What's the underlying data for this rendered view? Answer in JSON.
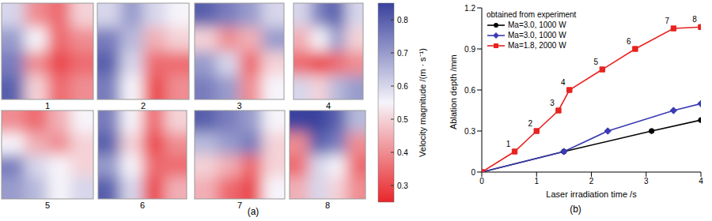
{
  "figure_a": {
    "panel_label": "(a)",
    "maps": [
      {
        "label": "1",
        "field": [
          [
            0.6,
            0.4,
            0.35,
            0.5
          ],
          [
            0.7,
            0.55,
            0.35,
            0.4
          ],
          [
            0.75,
            0.4,
            0.3,
            0.35
          ],
          [
            0.8,
            0.5,
            0.35,
            0.4
          ]
        ]
      },
      {
        "label": "2",
        "field": [
          [
            0.6,
            0.7,
            0.6,
            0.55
          ],
          [
            0.75,
            0.65,
            0.45,
            0.5
          ],
          [
            0.8,
            0.6,
            0.35,
            0.35
          ],
          [
            0.75,
            0.55,
            0.3,
            0.4
          ]
        ]
      },
      {
        "label": "3",
        "field": [
          [
            0.8,
            0.75,
            0.7,
            0.6
          ],
          [
            0.5,
            0.4,
            0.45,
            0.7
          ],
          [
            0.7,
            0.6,
            0.35,
            0.5
          ],
          [
            0.75,
            0.7,
            0.4,
            0.55
          ]
        ]
      },
      {
        "label": "4",
        "field": [
          [
            0.6,
            0.75,
            0.8,
            0.6
          ],
          [
            0.45,
            0.55,
            0.7,
            0.5
          ],
          [
            0.35,
            0.3,
            0.35,
            0.4
          ],
          [
            0.6,
            0.5,
            0.65,
            0.7
          ]
        ]
      },
      {
        "label": "5",
        "field": [
          [
            0.4,
            0.35,
            0.45,
            0.55
          ],
          [
            0.55,
            0.45,
            0.4,
            0.5
          ],
          [
            0.75,
            0.6,
            0.55,
            0.5
          ],
          [
            0.7,
            0.65,
            0.55,
            0.6
          ]
        ]
      },
      {
        "label": "6",
        "field": [
          [
            0.75,
            0.55,
            0.35,
            0.5
          ],
          [
            0.8,
            0.5,
            0.3,
            0.4
          ],
          [
            0.7,
            0.55,
            0.35,
            0.35
          ],
          [
            0.8,
            0.6,
            0.3,
            0.45
          ]
        ]
      },
      {
        "label": "7",
        "field": [
          [
            0.8,
            0.75,
            0.7,
            0.55
          ],
          [
            0.65,
            0.7,
            0.75,
            0.5
          ],
          [
            0.5,
            0.45,
            0.35,
            0.5
          ],
          [
            0.45,
            0.35,
            0.3,
            0.55
          ]
        ]
      },
      {
        "label": "8",
        "field": [
          [
            0.85,
            0.85,
            0.8,
            0.65
          ],
          [
            0.4,
            0.8,
            0.75,
            0.4
          ],
          [
            0.35,
            0.6,
            0.55,
            0.35
          ],
          [
            0.45,
            0.6,
            0.5,
            0.4
          ]
        ]
      }
    ],
    "colorbar": {
      "label": "Velocity magnitude /(m · s⁻¹)",
      "range": [
        0.25,
        0.85
      ],
      "ticks": [
        0.3,
        0.4,
        0.5,
        0.6,
        0.7,
        0.8
      ]
    }
  },
  "chart_data": {
    "panel_label": "(b)",
    "type": "line",
    "xlabel": "Laser irradiation time /s",
    "ylabel": "Ablation depth /mm",
    "xlim": [
      0,
      4
    ],
    "xticks": [
      0,
      1,
      2,
      3,
      4
    ],
    "ylim": [
      0,
      1.2
    ],
    "yticks": [
      0,
      0.3,
      0.6,
      0.9,
      1.2
    ],
    "legend": "upper left",
    "legend_title": "obtained from experiment",
    "series": [
      {
        "name": "Ma=3.0, 1000 W",
        "color": "#000000",
        "marker": "circle",
        "x": [
          0,
          1.5,
          3.1,
          4
        ],
        "values": [
          0,
          0.15,
          0.3,
          0.38
        ]
      },
      {
        "name": "Ma=3.0, 1000 W",
        "color": "#3b3bb3",
        "marker": "diamond",
        "x": [
          0,
          1.5,
          2.3,
          3.5,
          4
        ],
        "values": [
          0,
          0.15,
          0.3,
          0.45,
          0.5
        ]
      },
      {
        "name": "Ma=1.8, 2000 W",
        "color": "#e8231f",
        "marker": "square",
        "x": [
          0,
          0.6,
          1,
          1.4,
          1.6,
          2.2,
          2.8,
          3.5,
          4
        ],
        "values": [
          0,
          0.15,
          0.3,
          0.45,
          0.6,
          0.75,
          0.9,
          1.05,
          1.06
        ],
        "point_labels": [
          null,
          "1",
          "2",
          "3",
          "4",
          "5",
          "6",
          "7",
          "8"
        ]
      }
    ]
  }
}
